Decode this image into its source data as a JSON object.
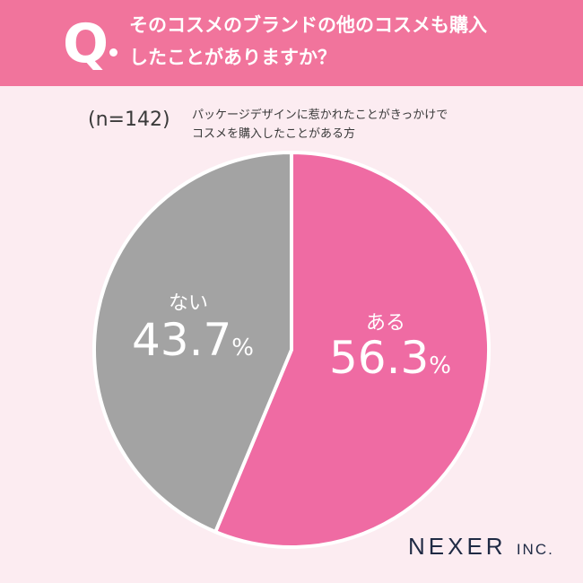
{
  "header": {
    "q_mark": "Q",
    "question_line1": "そのコスメのブランドの他のコスメも購入",
    "question_line2": "したことがありますか？"
  },
  "sample": "(n=142)",
  "condition_line1": "パッケージデザインに惹かれたことがきっかけで",
  "condition_line2": "コスメを購入したことがある方",
  "colors": {
    "header": "#f1749c",
    "background": "#fcecf1",
    "yes": "#ef6ba3",
    "no": "#a3a3a3"
  },
  "chart_data": {
    "type": "pie",
    "slices": [
      {
        "label": "ある",
        "value": 56.3,
        "color": "#ef6ba3",
        "value_text": "56.3",
        "unit": "%"
      },
      {
        "label": "ない",
        "value": 43.7,
        "color": "#a3a3a3",
        "value_text": "43.7",
        "unit": "%"
      }
    ]
  },
  "brand": {
    "name": "NEXER",
    "suffix": "INC."
  }
}
